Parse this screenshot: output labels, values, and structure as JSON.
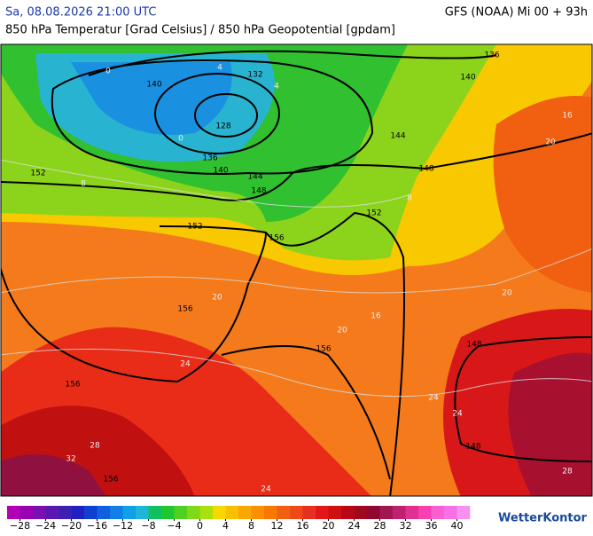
{
  "header": {
    "date": "Sa, 08.08.2026 21:00 UTC",
    "model": "GFS (NOAA) Mi 00 + 93h",
    "subtitle": "850 hPa Temperatur [Grad Celsius] / 850 hPa Geopotential [gpdam]"
  },
  "map": {
    "geopotential_labels": [
      136,
      140,
      132,
      140,
      128,
      136,
      140,
      144,
      144,
      148,
      148,
      152,
      152,
      152,
      156,
      156,
      156,
      156,
      156,
      148,
      148
    ],
    "temperature_labels": [
      0,
      4,
      0,
      4,
      8,
      8,
      16,
      20,
      20,
      20,
      16,
      20,
      24,
      24,
      24,
      28,
      32,
      28,
      24
    ]
  },
  "colorbar": {
    "colors": [
      "#b400b4",
      "#9a00b4",
      "#7a10b0",
      "#5a18b0",
      "#3c20b4",
      "#2020c0",
      "#1040d0",
      "#1060e0",
      "#1080e8",
      "#10a0e8",
      "#20b4d8",
      "#10c060",
      "#20c830",
      "#50d020",
      "#80d818",
      "#a8e010",
      "#f8d800",
      "#f8c000",
      "#f8a800",
      "#f89000",
      "#f87800",
      "#f06010",
      "#f04818",
      "#e83020",
      "#e01818",
      "#d01010",
      "#b80818",
      "#a00820",
      "#900830",
      "#a01850",
      "#c02070",
      "#e03090",
      "#f840b0",
      "#f860d0",
      "#f870e8",
      "#f890f0"
    ],
    "ticks": [
      {
        "value": -28,
        "label": "−28"
      },
      {
        "value": -24,
        "label": "−24"
      },
      {
        "value": -20,
        "label": "−20"
      },
      {
        "value": -16,
        "label": "−16"
      },
      {
        "value": -12,
        "label": "−12"
      },
      {
        "value": -8,
        "label": "−8"
      },
      {
        "value": -4,
        "label": "−4"
      },
      0,
      4,
      8,
      12,
      16,
      20,
      24,
      28,
      32,
      36,
      40
    ],
    "lim": [
      -30,
      42
    ]
  },
  "logo": "WetterKontor"
}
